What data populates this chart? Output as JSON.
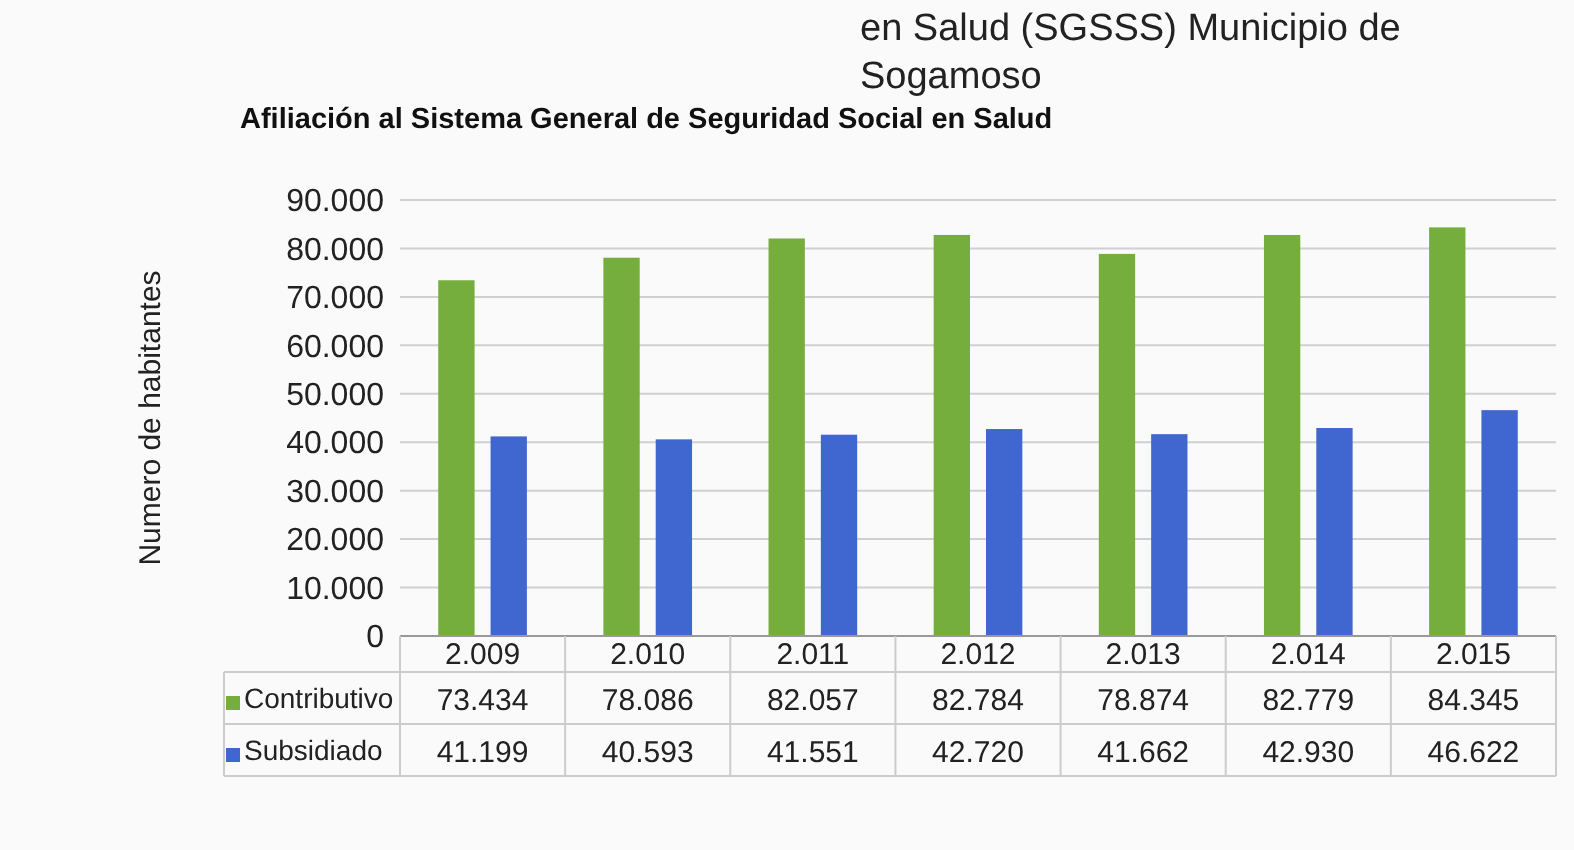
{
  "chart_data": {
    "type": "bar",
    "title": "Afiliación al Sistema General de Seguridad Social en Salud",
    "ylabel": "Numero de habitantes",
    "annotations": [
      "en Salud (SGSSS) Municipio de Sogamoso"
    ],
    "categories": [
      "2.009",
      "2.010",
      "2.011",
      "2.012",
      "2.013",
      "2.014",
      "2.015"
    ],
    "series": [
      {
        "name": "Contributivo",
        "color": "#76ae3e",
        "values": [
          73434,
          78086,
          82057,
          82784,
          78874,
          82779,
          84345
        ],
        "value_labels": [
          "73.434",
          "78.086",
          "82.057",
          "82.784",
          "78.874",
          "82.779",
          "84.345"
        ]
      },
      {
        "name": "Subsidiado",
        "color": "#3f67cf",
        "values": [
          41199,
          40593,
          41551,
          42720,
          41662,
          42930,
          46622
        ],
        "value_labels": [
          "41.199",
          "40.593",
          "41.551",
          "42.720",
          "41.662",
          "42.930",
          "46.622"
        ]
      }
    ],
    "ylim": [
      0,
      90000
    ],
    "yticks": [
      {
        "value": 0,
        "label": "0"
      },
      {
        "value": 10000,
        "label": "10.000"
      },
      {
        "value": 20000,
        "label": "20.000"
      },
      {
        "value": 30000,
        "label": "30.000"
      },
      {
        "value": 40000,
        "label": "40.000"
      },
      {
        "value": 50000,
        "label": "50.000"
      },
      {
        "value": 60000,
        "label": "60.000"
      },
      {
        "value": 70000,
        "label": "70.000"
      },
      {
        "value": 80000,
        "label": "80.000"
      },
      {
        "value": 90000,
        "label": "90.000"
      }
    ],
    "grid": "y",
    "legend": "bottom left"
  }
}
